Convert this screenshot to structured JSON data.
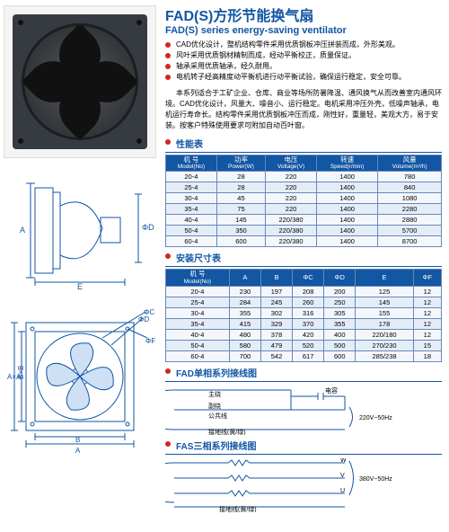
{
  "title": {
    "cn": "FAD(S)方形节能换气扇",
    "en": "FAD(S) series energy-saving ventilator"
  },
  "bullets": [
    "CAD优化设计，整机结构零件采用优质钢板冲压拼装而成，外形美观。",
    "风叶采用优质钢材精制而成，经动平衡校正，质量保证。",
    "轴承采用优质轴承，经久耐用。",
    "电机转子经高精度动平衡机进行动平衡试验，确保运行稳定，安全可靠。"
  ],
  "desc": "本系列适合于工矿企业、仓库、商业等场所防暑降温、通风换气从而改善室内通风环境。CAD优化设计，风量大、噪音小、运行稳定。电机采用冲压外壳，低噪声轴承，电机运行寿命长。结构零件采用优质钢板冲压而成，刚性好，重量轻，美观大方，易于安装。按客户特殊使用要求可附加自动百叶窗。",
  "perf": {
    "title": "性能表",
    "columns": [
      {
        "h": "机 号",
        "s": "Model(No)"
      },
      {
        "h": "功率",
        "s": "Power(W)"
      },
      {
        "h": "电压",
        "s": "Voltage(V)"
      },
      {
        "h": "转速",
        "s": "Speed(r/min)"
      },
      {
        "h": "风量",
        "s": "Volume(m³/h)"
      }
    ],
    "rows": [
      [
        "20-4",
        "28",
        "220",
        "1400",
        "780"
      ],
      [
        "25-4",
        "28",
        "220",
        "1400",
        "840"
      ],
      [
        "30-4",
        "45",
        "220",
        "1400",
        "1080"
      ],
      [
        "35-4",
        "75",
        "220",
        "1400",
        "2280"
      ],
      [
        "40-4",
        "145",
        "220/380",
        "1400",
        "2880"
      ],
      [
        "50-4",
        "350",
        "220/380",
        "1400",
        "5700"
      ],
      [
        "60-4",
        "600",
        "220/380",
        "1400",
        "8700"
      ]
    ]
  },
  "dims": {
    "title": "安装尺寸表",
    "columns": [
      {
        "h": "机 号",
        "s": "Model(No)"
      },
      {
        "h": "A",
        "s": ""
      },
      {
        "h": "B",
        "s": ""
      },
      {
        "h": "ΦC",
        "s": ""
      },
      {
        "h": "ΦD",
        "s": ""
      },
      {
        "h": "E",
        "s": ""
      },
      {
        "h": "ΦF",
        "s": ""
      }
    ],
    "rows": [
      [
        "20-4",
        "230",
        "197",
        "208",
        "200",
        "125",
        "12"
      ],
      [
        "25-4",
        "284",
        "245",
        "260",
        "250",
        "145",
        "12"
      ],
      [
        "30-4",
        "355",
        "302",
        "316",
        "305",
        "155",
        "12"
      ],
      [
        "35-4",
        "415",
        "329",
        "370",
        "355",
        "178",
        "12"
      ],
      [
        "40-4",
        "480",
        "378",
        "420",
        "400",
        "220/180",
        "12"
      ],
      [
        "50-4",
        "580",
        "479",
        "520",
        "500",
        "270/230",
        "15"
      ],
      [
        "60-4",
        "700",
        "542",
        "617",
        "600",
        "285/238",
        "18"
      ]
    ]
  },
  "wiring1": {
    "title": "FAD单相系列接线图",
    "labels": {
      "main": "主绕",
      "aux": "副绕",
      "com": "公共线",
      "gnd": "接地线(黄/绿)",
      "cap": "电容",
      "volt": "220V~50Hz"
    }
  },
  "wiring2": {
    "title": "FAS三相系列接线图",
    "labels": {
      "w": "W",
      "v": "V",
      "u": "U",
      "gnd": "接地线(黄/绿)",
      "volt": "380V~50Hz"
    }
  },
  "colors": {
    "brand": "#1256a4",
    "accent": "#d1261f"
  }
}
